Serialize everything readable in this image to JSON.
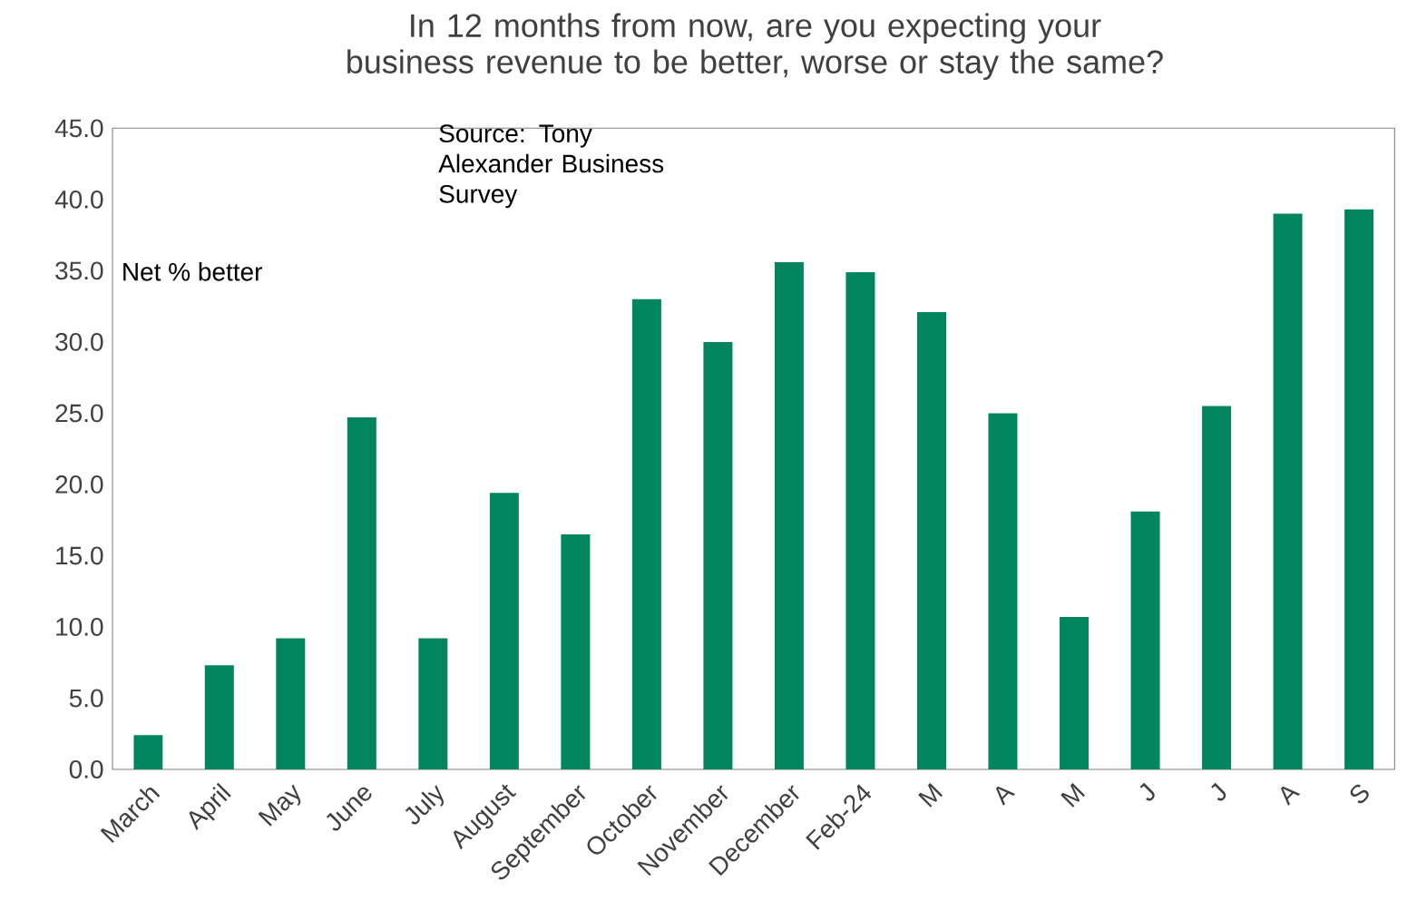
{
  "chart_data": {
    "type": "bar",
    "title": "In 12 months from now, are you expecting your business revenue to be better, worse or stay the same?",
    "categories": [
      "March",
      "April",
      "May",
      "June",
      "July",
      "August",
      "September",
      "October",
      "November",
      "December",
      "Feb-24",
      "M",
      "A",
      "M",
      "J",
      "J",
      "A",
      "S"
    ],
    "values": [
      2.4,
      7.3,
      9.2,
      24.7,
      9.2,
      19.4,
      16.5,
      33.0,
      30.0,
      35.6,
      34.9,
      32.1,
      25.0,
      10.7,
      18.1,
      25.5,
      39.0,
      39.3
    ],
    "color": "#00855f",
    "ylim": [
      0,
      45
    ],
    "yticks": [
      {
        "value": 0,
        "label": "0.0"
      },
      {
        "value": 5,
        "label": "5.0"
      },
      {
        "value": 10,
        "label": "10.0"
      },
      {
        "value": 15,
        "label": "15.0"
      },
      {
        "value": 20,
        "label": "20.0"
      },
      {
        "value": 25,
        "label": "25.0"
      },
      {
        "value": 30,
        "label": "30.0"
      },
      {
        "value": 35,
        "label": "35.0"
      },
      {
        "value": 40,
        "label": "40.0"
      },
      {
        "value": 45,
        "label": "45.0"
      }
    ],
    "grid": false,
    "annotations": [
      "Source: Tony Alexander Business Survey",
      "Net % better"
    ]
  }
}
